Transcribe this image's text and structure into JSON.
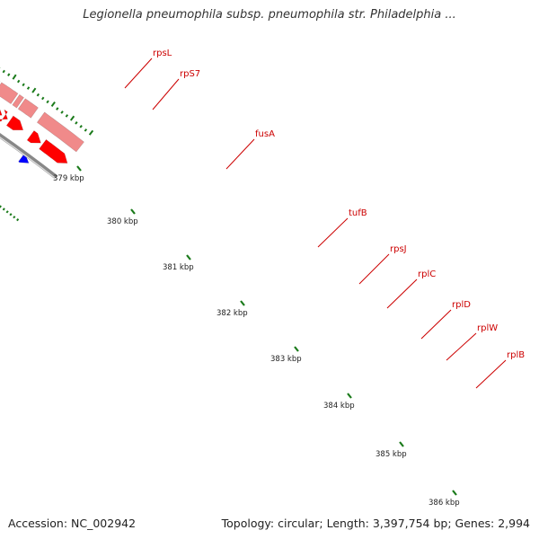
{
  "title": "Legionella pneumophila subsp. pneumophila str. Philadelphia ...",
  "footer": {
    "accession": "Accession: NC_002942",
    "topology": "Topology: circular; Length: 3,397,754 bp; Genes: 2,994"
  },
  "genes": [
    "rpsL",
    "rpS7",
    "fusA",
    "tufB",
    "rpsJ",
    "rplC",
    "rplD",
    "rplW",
    "rplB"
  ],
  "kbp_ticks": [
    "379 kbp",
    "380 kbp",
    "381 kbp",
    "382 kbp",
    "383 kbp",
    "384 kbp",
    "385 kbp",
    "386 kbp"
  ],
  "colors": {
    "cds_forward": "#ff0000",
    "cds_row2": "#f08a8a",
    "rna": "#ff9900",
    "other": "#0000ff",
    "gene_label": "#cc0000",
    "backbone": "#888888",
    "tick": "#1a7a1a"
  }
}
